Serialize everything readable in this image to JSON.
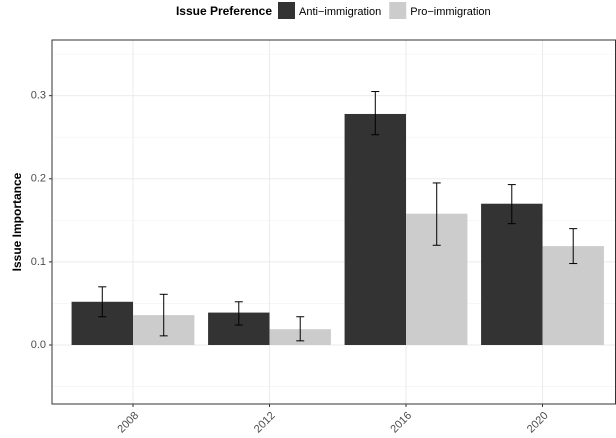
{
  "chart_data": {
    "type": "bar",
    "legend_title": "Issue Preference",
    "y_label": "Issue Importance",
    "categories": [
      "2008",
      "2012",
      "2016",
      "2020"
    ],
    "series": [
      {
        "name": "Anti−immigration",
        "color": "#333333",
        "values": [
          0.052,
          0.039,
          0.278,
          0.17
        ],
        "lower": [
          0.034,
          0.024,
          0.253,
          0.146
        ],
        "upper": [
          0.07,
          0.052,
          0.305,
          0.193
        ]
      },
      {
        "name": "Pro−immigration",
        "color": "#cccccc",
        "values": [
          0.036,
          0.019,
          0.158,
          0.119
        ],
        "lower": [
          0.011,
          0.005,
          0.12,
          0.098
        ],
        "upper": [
          0.061,
          0.034,
          0.195,
          0.14
        ]
      }
    ],
    "ylim": [
      -0.071,
      0.367
    ],
    "yticks": [
      {
        "value": 0,
        "label": "0.0"
      },
      0.1,
      0.2,
      0.3
    ],
    "minor_yticks": [
      -0.05,
      0.05,
      0.15,
      0.25,
      0.35
    ],
    "grid": true,
    "legend_position": "top"
  }
}
